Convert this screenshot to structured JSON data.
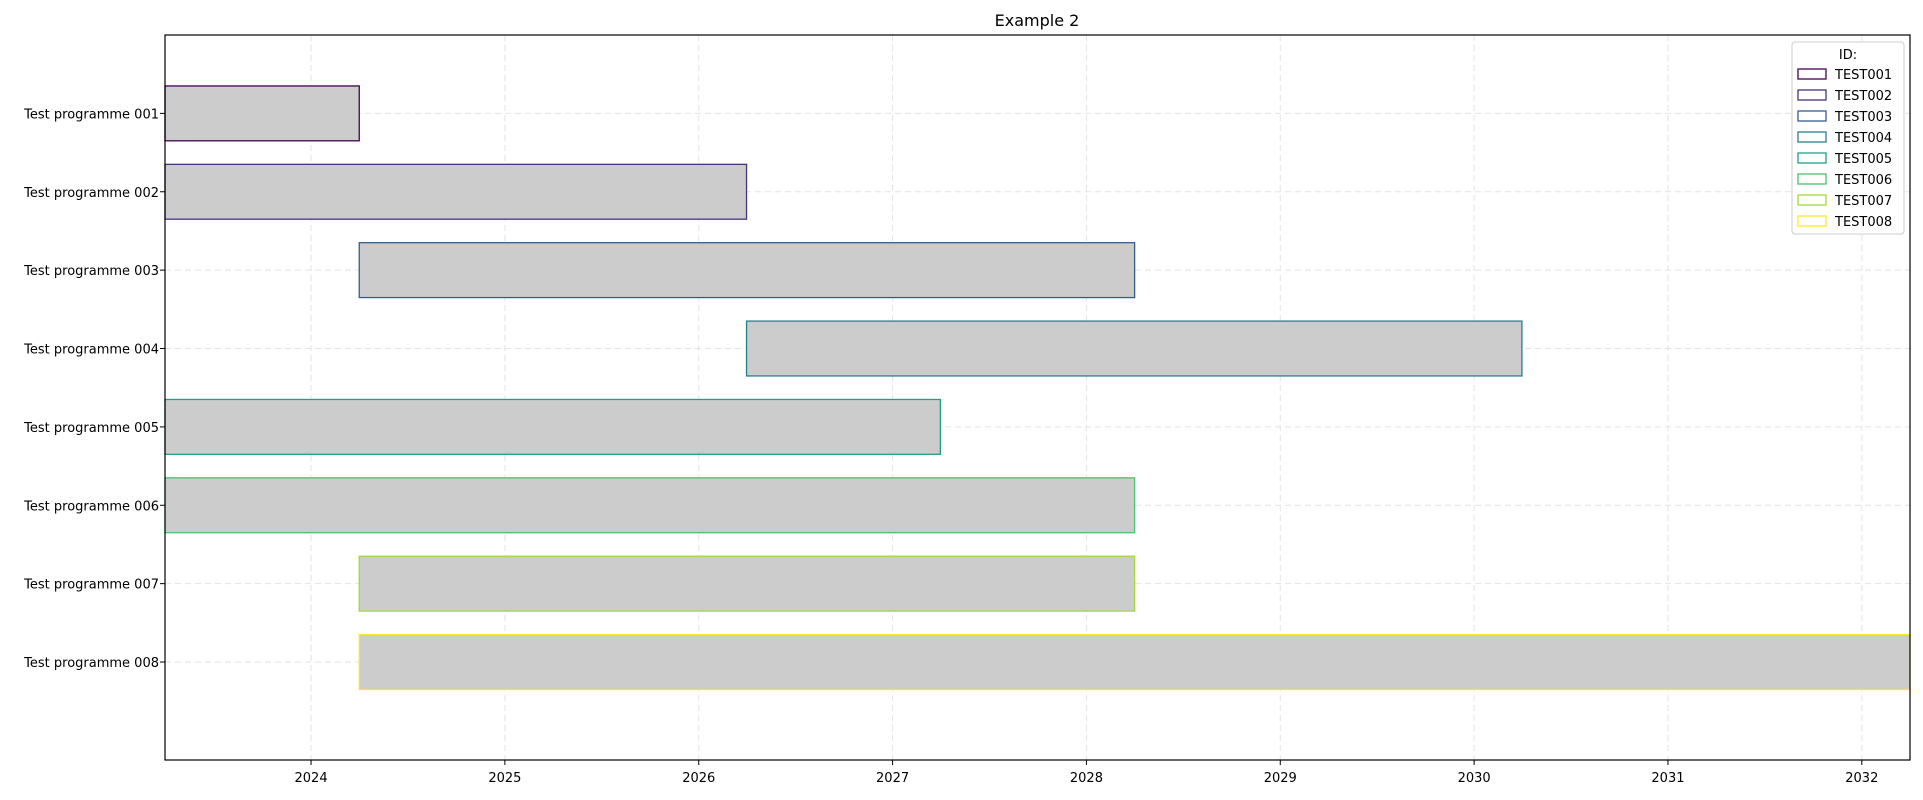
{
  "chart_data": {
    "type": "bar",
    "orientation": "horizontal",
    "title": "Example 2",
    "xlabel": "",
    "ylabel": "",
    "x_axis": "date",
    "xlim": [
      "2023-04-01",
      "2032-04-01"
    ],
    "x_ticks": [
      "2024",
      "2025",
      "2026",
      "2027",
      "2028",
      "2029",
      "2030",
      "2031",
      "2032"
    ],
    "grid": true,
    "legend": {
      "title": "ID:",
      "position": "top-right"
    },
    "bar_fill_color": "#cccccc",
    "categories": [
      "Test programme 001",
      "Test programme 002",
      "Test programme 003",
      "Test programme 004",
      "Test programme 005",
      "Test programme 006",
      "Test programme 007",
      "Test programme 008"
    ],
    "series": [
      {
        "name": "TEST001",
        "color": "#440154",
        "start": "2023-04-01",
        "end": "2024-04-01"
      },
      {
        "name": "TEST002",
        "color": "#46327e",
        "start": "2023-04-01",
        "end": "2026-04-01"
      },
      {
        "name": "TEST003",
        "color": "#365c8d",
        "start": "2024-04-01",
        "end": "2028-04-01"
      },
      {
        "name": "TEST004",
        "color": "#277f8e",
        "start": "2026-04-01",
        "end": "2030-04-01"
      },
      {
        "name": "TEST005",
        "color": "#1fa187",
        "start": "2023-04-01",
        "end": "2027-04-01"
      },
      {
        "name": "TEST006",
        "color": "#4ac16d",
        "start": "2023-04-01",
        "end": "2028-04-01"
      },
      {
        "name": "TEST007",
        "color": "#a0da39",
        "start": "2024-04-01",
        "end": "2028-04-01"
      },
      {
        "name": "TEST008",
        "color": "#fde725",
        "start": "2024-04-01",
        "end": "2032-04-01"
      }
    ]
  }
}
